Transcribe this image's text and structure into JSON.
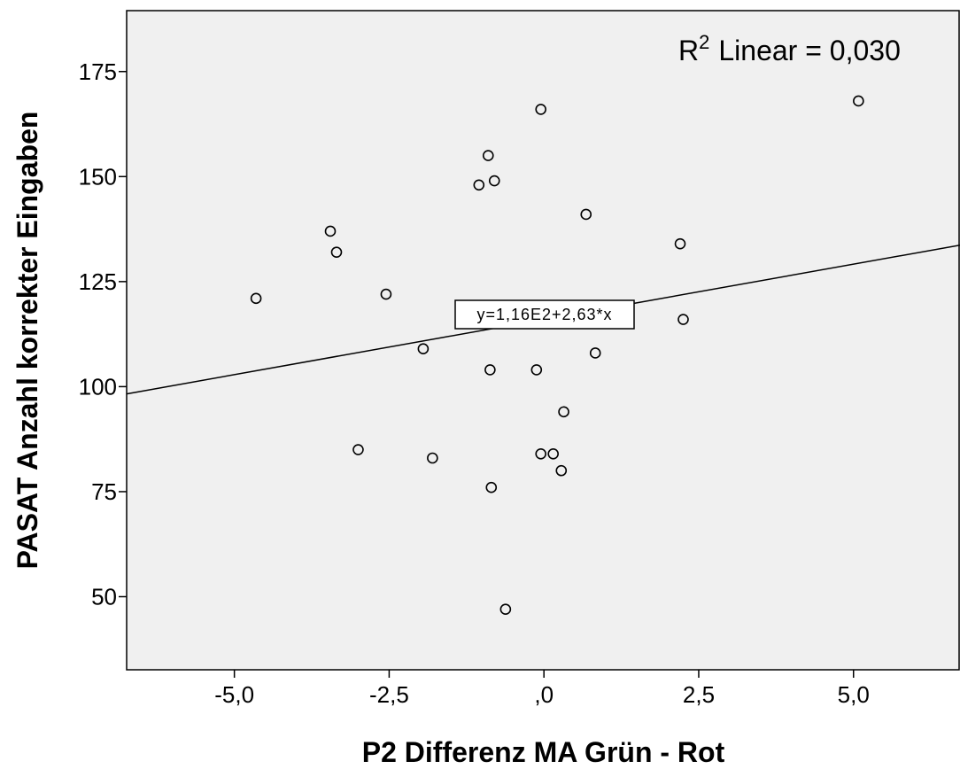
{
  "chart_data": {
    "type": "scatter",
    "xlabel": "P2 Differenz MA Grün - Rot",
    "ylabel": "PASAT Anzahl korrekter Eingaben",
    "xlim": [
      -6.74,
      6.72
    ],
    "ylim": [
      32.6,
      189.5
    ],
    "xticks": [
      -5.0,
      -2.5,
      0.0,
      2.5,
      5.0
    ],
    "xtick_labels": [
      "-5,0",
      "-2,5",
      ",0",
      "2,5",
      "5,0"
    ],
    "yticks": [
      50,
      75,
      100,
      125,
      150,
      175
    ],
    "ytick_labels": [
      "50",
      "75",
      "100",
      "125",
      "150",
      "175"
    ],
    "grid": false,
    "background_color": "#f0f0f0",
    "marker": "open-circle",
    "fit_line": {
      "intercept": 116.0,
      "slope": 2.63
    },
    "fit_equation_label": "y=1,16E2+2,63*x",
    "r2_prefix": "R",
    "r2_sup": "2",
    "r2_suffix": "Linear = 0,030",
    "points": [
      {
        "x": -4.65,
        "y": 121
      },
      {
        "x": -3.45,
        "y": 137
      },
      {
        "x": -3.35,
        "y": 132
      },
      {
        "x": -3.0,
        "y": 85
      },
      {
        "x": -2.55,
        "y": 122
      },
      {
        "x": -1.95,
        "y": 109
      },
      {
        "x": -1.8,
        "y": 83
      },
      {
        "x": -1.05,
        "y": 148
      },
      {
        "x": -0.9,
        "y": 155
      },
      {
        "x": -0.8,
        "y": 149
      },
      {
        "x": -0.87,
        "y": 104
      },
      {
        "x": -0.85,
        "y": 76
      },
      {
        "x": -0.62,
        "y": 47
      },
      {
        "x": -0.05,
        "y": 166
      },
      {
        "x": -0.12,
        "y": 104
      },
      {
        "x": -0.05,
        "y": 84
      },
      {
        "x": 0.15,
        "y": 84
      },
      {
        "x": 0.28,
        "y": 80
      },
      {
        "x": 0.32,
        "y": 94
      },
      {
        "x": 0.68,
        "y": 141
      },
      {
        "x": 0.83,
        "y": 108
      },
      {
        "x": 2.2,
        "y": 134
      },
      {
        "x": 2.25,
        "y": 116
      },
      {
        "x": 5.08,
        "y": 168
      }
    ]
  }
}
